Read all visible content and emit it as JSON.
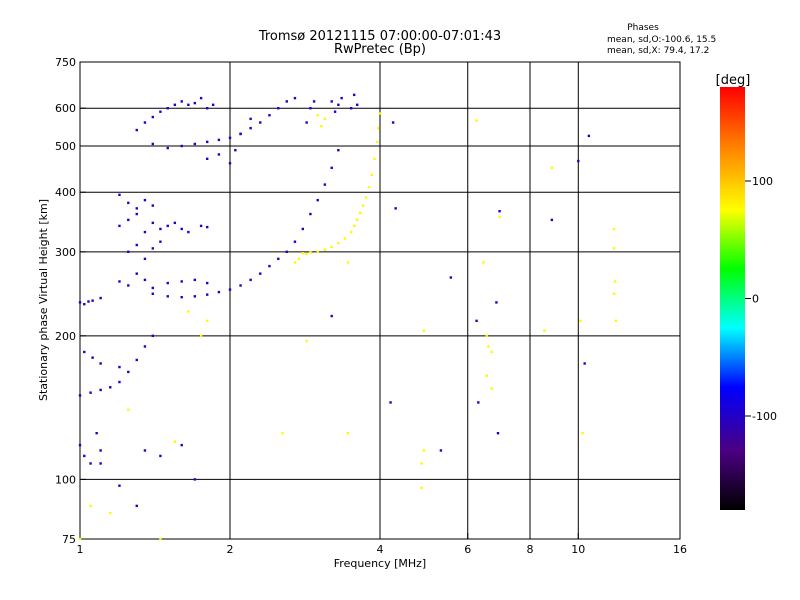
{
  "chart_data": {
    "type": "scatter",
    "title": "Tromsø 20121115 07:00:00-07:01:43",
    "subtitle": "RwPretec (Bp)",
    "xlabel": "Frequency [MHz]",
    "ylabel": "Stationary phase Virtual Height [km]",
    "x_scale": "log",
    "y_scale": "log",
    "xlim": [
      1,
      16
    ],
    "ylim": [
      75,
      750
    ],
    "x_ticks": [
      1,
      2,
      4,
      6,
      8,
      10,
      16
    ],
    "y_ticks": [
      75,
      100,
      200,
      300,
      400,
      500,
      600,
      750
    ],
    "x_gridlines": [
      2,
      4,
      6,
      8,
      10
    ],
    "y_gridlines": [
      100,
      200,
      300,
      400,
      500,
      600
    ],
    "grid": true,
    "legend": {
      "title": "Phases",
      "lines": [
        "mean, sd,O:-100.6, 15.5",
        "mean, sd,X:  79.4, 17.2"
      ],
      "position": "top-right"
    },
    "colorbar": {
      "label": "[deg]",
      "ticks": [
        100,
        0,
        -100
      ],
      "range": [
        -180,
        180
      ],
      "colors": [
        "#000000",
        "#4b0082",
        "#0000ff",
        "#00ffff",
        "#00ff00",
        "#ffff00",
        "#ff8000",
        "#ff0000"
      ]
    },
    "series": [
      {
        "mode": "O",
        "color_phase_deg": -100.6,
        "points": [
          [
            1.0,
            235
          ],
          [
            1.02,
            233
          ],
          [
            1.04,
            236
          ],
          [
            1.06,
            237
          ],
          [
            1.1,
            240
          ],
          [
            1.0,
            150
          ],
          [
            1.05,
            152
          ],
          [
            1.1,
            154
          ],
          [
            1.15,
            156
          ],
          [
            1.2,
            160
          ],
          [
            1.25,
            168
          ],
          [
            1.3,
            178
          ],
          [
            1.35,
            190
          ],
          [
            1.4,
            200
          ],
          [
            1.02,
            185
          ],
          [
            1.06,
            180
          ],
          [
            1.1,
            175
          ],
          [
            1.2,
            172
          ],
          [
            1.0,
            118
          ],
          [
            1.02,
            112
          ],
          [
            1.05,
            108
          ],
          [
            1.08,
            125
          ],
          [
            1.1,
            115
          ],
          [
            1.2,
            340
          ],
          [
            1.25,
            350
          ],
          [
            1.3,
            360
          ],
          [
            1.35,
            330
          ],
          [
            1.4,
            345
          ],
          [
            1.45,
            335
          ],
          [
            1.5,
            340
          ],
          [
            1.55,
            345
          ],
          [
            1.6,
            335
          ],
          [
            1.65,
            330
          ],
          [
            1.75,
            340
          ],
          [
            1.8,
            338
          ],
          [
            1.2,
            260
          ],
          [
            1.25,
            255
          ],
          [
            1.3,
            270
          ],
          [
            1.35,
            262
          ],
          [
            1.4,
            252
          ],
          [
            1.5,
            258
          ],
          [
            1.6,
            260
          ],
          [
            1.7,
            262
          ],
          [
            1.8,
            258
          ],
          [
            1.25,
            300
          ],
          [
            1.3,
            310
          ],
          [
            1.35,
            290
          ],
          [
            1.4,
            305
          ],
          [
            1.45,
            315
          ],
          [
            1.2,
            395
          ],
          [
            1.25,
            380
          ],
          [
            1.3,
            370
          ],
          [
            1.35,
            385
          ],
          [
            1.4,
            375
          ],
          [
            1.4,
            245
          ],
          [
            1.5,
            242
          ],
          [
            1.6,
            241
          ],
          [
            1.7,
            242
          ],
          [
            1.8,
            244
          ],
          [
            1.9,
            247
          ],
          [
            2.0,
            250
          ],
          [
            2.1,
            255
          ],
          [
            2.2,
            262
          ],
          [
            2.3,
            270
          ],
          [
            2.4,
            280
          ],
          [
            2.5,
            290
          ],
          [
            2.6,
            300
          ],
          [
            2.7,
            315
          ],
          [
            2.8,
            335
          ],
          [
            2.9,
            360
          ],
          [
            3.0,
            385
          ],
          [
            3.1,
            415
          ],
          [
            3.2,
            450
          ],
          [
            3.3,
            490
          ],
          [
            1.3,
            540
          ],
          [
            1.35,
            560
          ],
          [
            1.4,
            575
          ],
          [
            1.45,
            590
          ],
          [
            1.5,
            600
          ],
          [
            1.55,
            610
          ],
          [
            1.6,
            620
          ],
          [
            1.65,
            610
          ],
          [
            1.7,
            615
          ],
          [
            1.75,
            630
          ],
          [
            1.8,
            600
          ],
          [
            1.85,
            610
          ],
          [
            1.4,
            505
          ],
          [
            1.5,
            495
          ],
          [
            1.6,
            500
          ],
          [
            1.7,
            505
          ],
          [
            1.8,
            510
          ],
          [
            1.9,
            515
          ],
          [
            2.0,
            520
          ],
          [
            2.1,
            530
          ],
          [
            2.2,
            545
          ],
          [
            2.3,
            560
          ],
          [
            2.4,
            580
          ],
          [
            2.5,
            600
          ],
          [
            2.6,
            620
          ],
          [
            2.7,
            630
          ],
          [
            1.8,
            470
          ],
          [
            1.9,
            480
          ],
          [
            2.0,
            460
          ],
          [
            2.05,
            490
          ],
          [
            2.1,
            530
          ],
          [
            2.2,
            570
          ],
          [
            2.85,
            560
          ],
          [
            2.9,
            600
          ],
          [
            2.95,
            620
          ],
          [
            3.2,
            620
          ],
          [
            3.25,
            590
          ],
          [
            3.3,
            610
          ],
          [
            3.35,
            630
          ],
          [
            3.5,
            600
          ],
          [
            3.55,
            640
          ],
          [
            3.6,
            610
          ],
          [
            3.2,
            220
          ],
          [
            1.1,
            108
          ],
          [
            1.2,
            97
          ],
          [
            1.3,
            88
          ],
          [
            1.35,
            115
          ],
          [
            1.45,
            112
          ],
          [
            1.6,
            118
          ],
          [
            1.7,
            100
          ],
          [
            4.25,
            560
          ],
          [
            4.3,
            370
          ],
          [
            4.2,
            145
          ],
          [
            5.3,
            115
          ],
          [
            5.55,
            265
          ],
          [
            6.25,
            215
          ],
          [
            6.3,
            145
          ],
          [
            6.85,
            235
          ],
          [
            6.9,
            125
          ],
          [
            6.95,
            365
          ],
          [
            8.85,
            350
          ],
          [
            10.0,
            465
          ],
          [
            10.3,
            175
          ],
          [
            10.5,
            525
          ]
        ]
      },
      {
        "mode": "X",
        "color_phase_deg": 79.4,
        "points": [
          [
            2.8,
            298
          ],
          [
            2.85,
            297
          ],
          [
            2.9,
            299
          ],
          [
            3.0,
            300
          ],
          [
            3.1,
            303
          ],
          [
            3.2,
            307
          ],
          [
            3.3,
            313
          ],
          [
            3.4,
            320
          ],
          [
            3.5,
            330
          ],
          [
            3.55,
            340
          ],
          [
            3.6,
            350
          ],
          [
            3.65,
            362
          ],
          [
            3.7,
            375
          ],
          [
            3.75,
            390
          ],
          [
            3.8,
            410
          ],
          [
            3.85,
            435
          ],
          [
            3.9,
            470
          ],
          [
            3.95,
            510
          ],
          [
            3.97,
            545
          ],
          [
            4.0,
            585
          ],
          [
            2.7,
            285
          ],
          [
            2.75,
            290
          ],
          [
            3.0,
            580
          ],
          [
            3.1,
            570
          ],
          [
            3.05,
            550
          ],
          [
            1.75,
            200
          ],
          [
            1.8,
            215
          ],
          [
            1.65,
            225
          ],
          [
            2.55,
            125
          ],
          [
            2.85,
            195
          ],
          [
            3.45,
            285
          ],
          [
            3.45,
            125
          ],
          [
            4.9,
            205
          ],
          [
            4.9,
            115
          ],
          [
            4.85,
            108
          ],
          [
            4.85,
            96
          ],
          [
            6.25,
            565
          ],
          [
            6.45,
            285
          ],
          [
            6.55,
            200
          ],
          [
            6.6,
            190
          ],
          [
            6.7,
            185
          ],
          [
            6.55,
            165
          ],
          [
            6.7,
            155
          ],
          [
            6.95,
            355
          ],
          [
            10.2,
            125
          ],
          [
            10.1,
            215
          ],
          [
            11.8,
            335
          ],
          [
            11.8,
            305
          ],
          [
            11.85,
            260
          ],
          [
            11.8,
            245
          ],
          [
            11.9,
            215
          ],
          [
            8.55,
            205
          ],
          [
            8.85,
            450
          ],
          [
            1.0,
            75
          ],
          [
            1.05,
            88
          ],
          [
            1.15,
            85
          ],
          [
            1.25,
            140
          ],
          [
            1.45,
            75
          ],
          [
            1.55,
            120
          ]
        ]
      }
    ]
  }
}
